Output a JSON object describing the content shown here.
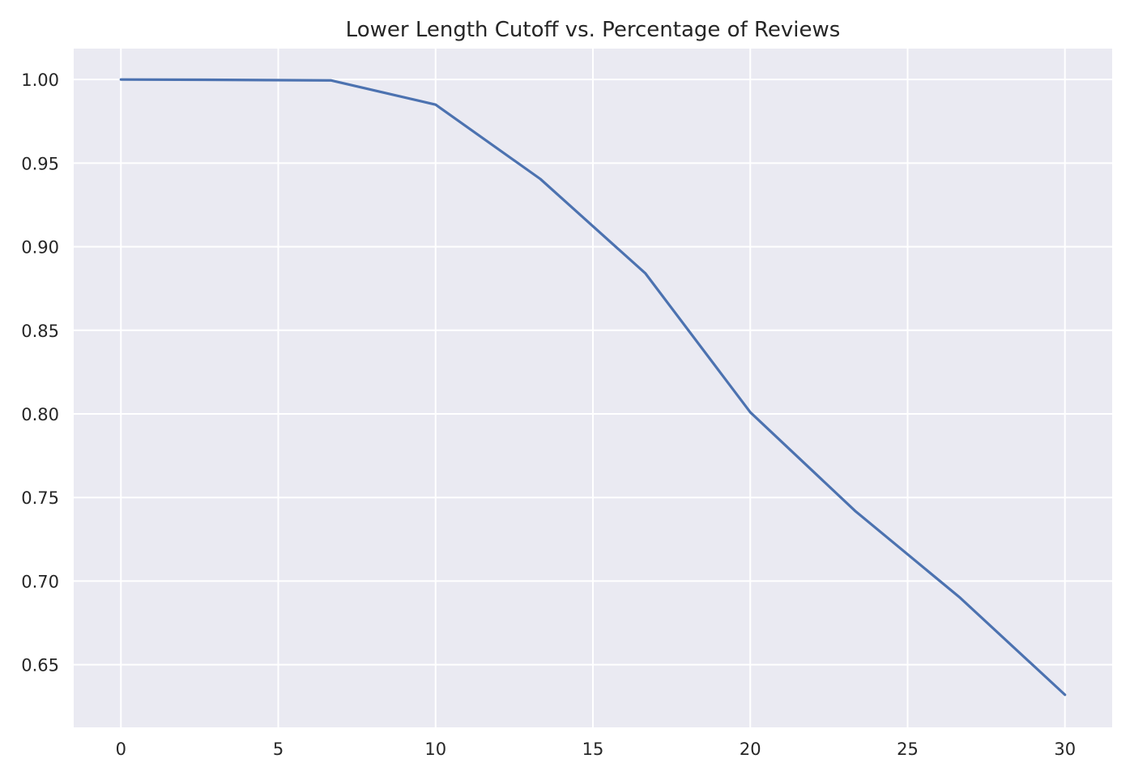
{
  "chart_data": {
    "type": "line",
    "title": "Lower Length Cutoff vs. Percentage of Reviews",
    "xlabel": "",
    "ylabel": "",
    "xlim": [
      -1.5,
      31.5
    ],
    "ylim": [
      0.6125,
      1.0185
    ],
    "xticks": [
      0,
      5,
      10,
      15,
      20,
      25,
      30
    ],
    "xtick_labels": [
      "0",
      "5",
      "10",
      "15",
      "20",
      "25",
      "30"
    ],
    "yticks": [
      0.65,
      0.7,
      0.75,
      0.8,
      0.85,
      0.9,
      0.95,
      1.0
    ],
    "ytick_labels": [
      "0.65",
      "0.70",
      "0.75",
      "0.80",
      "0.85",
      "0.90",
      "0.95",
      "1.00"
    ],
    "grid": true,
    "series": [
      {
        "color": "#4c72b0",
        "x": [
          0,
          3.33,
          6.67,
          10,
          13.33,
          16.67,
          20,
          23.33,
          26.67,
          30
        ],
        "y": [
          1.0,
          0.9998,
          0.9995,
          0.985,
          0.9405,
          0.884,
          0.801,
          0.742,
          0.69,
          0.632
        ]
      }
    ]
  }
}
